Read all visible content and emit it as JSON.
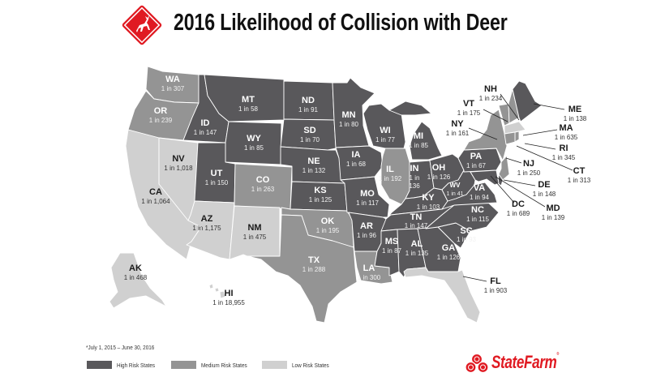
{
  "header": {
    "title": "2016 Likelihood of Collision with Deer",
    "logo_icon": "deer-crossing-sign-icon"
  },
  "colors": {
    "high": "#59585b",
    "medium": "#949494",
    "low": "#d0d0d0",
    "brand_red": "#e01a22",
    "border": "#ffffff"
  },
  "footnote": "*July 1, 2015 – June 30, 2016",
  "legend": [
    {
      "risk": "high",
      "label": "High Risk States"
    },
    {
      "risk": "medium",
      "label": "Medium Risk States"
    },
    {
      "risk": "low",
      "label": "Low Risk States"
    }
  ],
  "brand": {
    "logo_text": "StateFarm",
    "logo_icon": "state-farm-three-ovals-icon"
  },
  "states": [
    {
      "abbr": "WA",
      "value": "1 in 307",
      "risk": "medium"
    },
    {
      "abbr": "OR",
      "value": "1 in 239",
      "risk": "medium"
    },
    {
      "abbr": "CA",
      "value": "1 in 1,064",
      "risk": "low"
    },
    {
      "abbr": "NV",
      "value": "1 in 1,018",
      "risk": "low"
    },
    {
      "abbr": "ID",
      "value": "1 in 147",
      "risk": "high"
    },
    {
      "abbr": "MT",
      "value": "1 in 58",
      "risk": "high"
    },
    {
      "abbr": "WY",
      "value": "1 in 85",
      "risk": "high"
    },
    {
      "abbr": "UT",
      "value": "1 in 150",
      "risk": "high"
    },
    {
      "abbr": "AZ",
      "value": "1 in 1,175",
      "risk": "low"
    },
    {
      "abbr": "CO",
      "value": "1 in 263",
      "risk": "medium"
    },
    {
      "abbr": "NM",
      "value": "1 in 475",
      "risk": "low"
    },
    {
      "abbr": "ND",
      "value": "1 in 91",
      "risk": "high"
    },
    {
      "abbr": "SD",
      "value": "1 in 70",
      "risk": "high"
    },
    {
      "abbr": "NE",
      "value": "1 in 132",
      "risk": "high"
    },
    {
      "abbr": "KS",
      "value": "1 in 125",
      "risk": "high"
    },
    {
      "abbr": "OK",
      "value": "1 in 195",
      "risk": "medium"
    },
    {
      "abbr": "TX",
      "value": "1 in 288",
      "risk": "medium"
    },
    {
      "abbr": "MN",
      "value": "1 in 80",
      "risk": "high"
    },
    {
      "abbr": "IA",
      "value": "1 in 68",
      "risk": "high"
    },
    {
      "abbr": "MO",
      "value": "1 in 117",
      "risk": "high"
    },
    {
      "abbr": "AR",
      "value": "1 in 96",
      "risk": "high"
    },
    {
      "abbr": "LA",
      "value": "1 in 300",
      "risk": "medium"
    },
    {
      "abbr": "WI",
      "value": "1 in 77",
      "risk": "high"
    },
    {
      "abbr": "IL",
      "value": "1 in 192",
      "risk": "medium"
    },
    {
      "abbr": "MI",
      "value": "1 in 85",
      "risk": "high"
    },
    {
      "abbr": "IN",
      "value": "1 in 136",
      "risk": "high"
    },
    {
      "abbr": "OH",
      "value": "1 in 126",
      "risk": "high"
    },
    {
      "abbr": "KY",
      "value": "1 in 103",
      "risk": "high"
    },
    {
      "abbr": "TN",
      "value": "1 in 147",
      "risk": "high"
    },
    {
      "abbr": "MS",
      "value": "1 in 87",
      "risk": "high"
    },
    {
      "abbr": "AL",
      "value": "1 in 135",
      "risk": "high"
    },
    {
      "abbr": "GA",
      "value": "1 in 126",
      "risk": "high"
    },
    {
      "abbr": "FL",
      "value": "1 in 903",
      "risk": "low"
    },
    {
      "abbr": "SC",
      "value": "1 in 93",
      "risk": "high"
    },
    {
      "abbr": "NC",
      "value": "1 in 115",
      "risk": "high"
    },
    {
      "abbr": "VA",
      "value": "1 in 94",
      "risk": "high"
    },
    {
      "abbr": "WV",
      "value": "1 in 41",
      "risk": "high"
    },
    {
      "abbr": "PA",
      "value": "1 in 67",
      "risk": "high"
    },
    {
      "abbr": "NY",
      "value": "1 in 161",
      "risk": "medium"
    },
    {
      "abbr": "VT",
      "value": "1 in 175",
      "risk": "medium"
    },
    {
      "abbr": "NH",
      "value": "1 in 234",
      "risk": "medium"
    },
    {
      "abbr": "ME",
      "value": "1 in 138",
      "risk": "high"
    },
    {
      "abbr": "MA",
      "value": "1 in 635",
      "risk": "low"
    },
    {
      "abbr": "RI",
      "value": "1 in 345",
      "risk": "medium"
    },
    {
      "abbr": "CT",
      "value": "1 in 313",
      "risk": "medium"
    },
    {
      "abbr": "NJ",
      "value": "1 in 250",
      "risk": "medium"
    },
    {
      "abbr": "DE",
      "value": "1 in 148",
      "risk": "high"
    },
    {
      "abbr": "MD",
      "value": "1 in 139",
      "risk": "high"
    },
    {
      "abbr": "DC",
      "value": "1 in 689",
      "risk": "low"
    },
    {
      "abbr": "AK",
      "value": "1 in 468",
      "risk": "low"
    },
    {
      "abbr": "HI",
      "value": "1 in 18,955",
      "risk": "low"
    }
  ]
}
